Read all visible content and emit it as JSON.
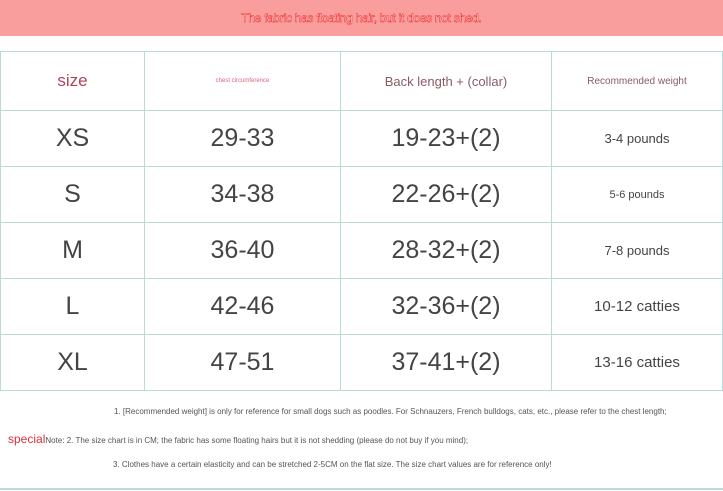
{
  "banner": "The fabric has floating hair, but it does not shed.",
  "headers": [
    "size",
    "chest circumference",
    "Back length + (collar)",
    "Recommended weight"
  ],
  "rows": [
    [
      "XS",
      "29-33",
      "19-23+(2)",
      "3-4 pounds"
    ],
    [
      "S",
      "34-38",
      "22-26+(2)",
      "5-6 pounds"
    ],
    [
      "M",
      "36-40",
      "28-32+(2)",
      "7-8 pounds"
    ],
    [
      "L",
      "42-46",
      "32-36+(2)",
      "10-12 catties"
    ],
    [
      "XL",
      "47-51",
      "37-41+(2)",
      "13-16 catties"
    ]
  ],
  "notes": {
    "special": "special",
    "n1": "1. [Recommended weight] is only for reference for small dogs such as poodles. For Schnauzers, French bulldogs, cats, etc., please refer to the chest length;",
    "n2": "Note: 2. The size chart is in CM; the fabric has some floating hairs but it is not shedding (please do not buy if you mind);",
    "n3": "3. Clothes have a certain elasticity and can be stretched 2-5CM on the flat size. The size chart values are for reference only!"
  }
}
